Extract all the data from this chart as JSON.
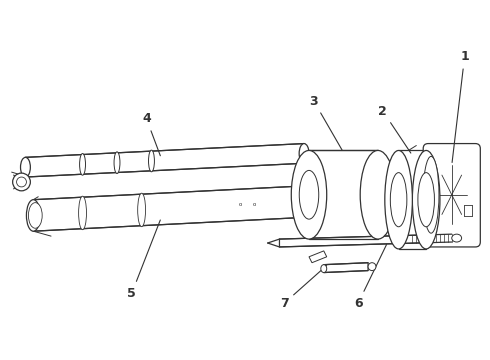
{
  "bg_color": "#ffffff",
  "line_color": "#333333",
  "label_color": "#000000",
  "fig_width": 4.9,
  "fig_height": 3.6,
  "dpi": 100
}
